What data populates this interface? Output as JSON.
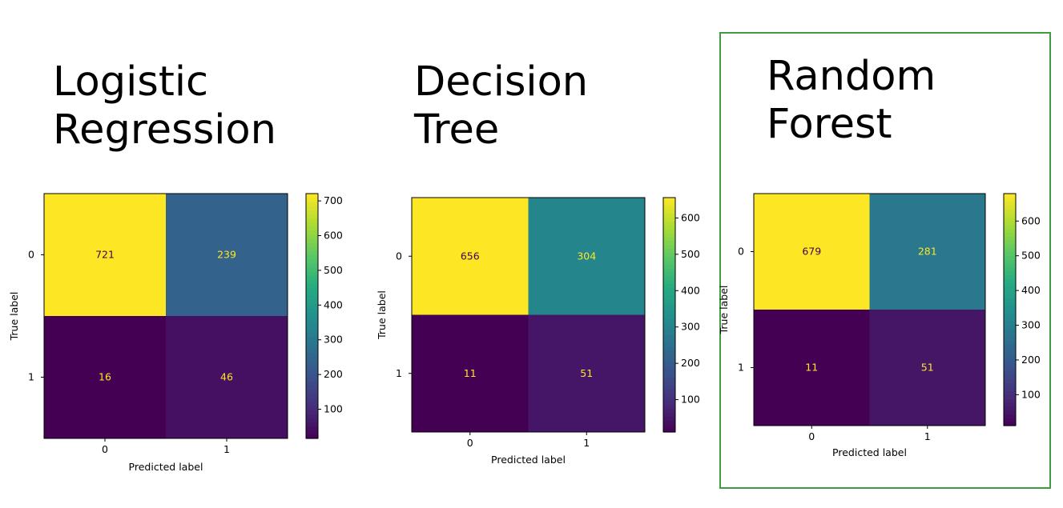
{
  "highlight_color": "#3f9b3f",
  "charts": [
    {
      "title_line1": "Logistic",
      "title_line2": "Regression"
    },
    {
      "title_line1": "Decision",
      "title_line2": "Tree"
    },
    {
      "title_line1": "Random",
      "title_line2": "Forest"
    }
  ],
  "chart_data": [
    {
      "type": "heatmap",
      "title": "Logistic Regression",
      "xlabel": "Predicted label",
      "ylabel": "True label",
      "x_categories": [
        "0",
        "1"
      ],
      "y_categories": [
        "0",
        "1"
      ],
      "values": [
        [
          721,
          239
        ],
        [
          16,
          46
        ]
      ],
      "colormap": "viridis",
      "colorbar_range": [
        16,
        721
      ],
      "colorbar_ticks": [
        100,
        200,
        300,
        400,
        500,
        600,
        700
      ]
    },
    {
      "type": "heatmap",
      "title": "Decision Tree",
      "xlabel": "Predicted label",
      "ylabel": "True label",
      "x_categories": [
        "0",
        "1"
      ],
      "y_categories": [
        "0",
        "1"
      ],
      "values": [
        [
          656,
          304
        ],
        [
          11,
          51
        ]
      ],
      "colormap": "viridis",
      "colorbar_range": [
        11,
        656
      ],
      "colorbar_ticks": [
        100,
        200,
        300,
        400,
        500,
        600
      ]
    },
    {
      "type": "heatmap",
      "title": "Random Forest",
      "xlabel": "Predicted label",
      "ylabel": "True label",
      "x_categories": [
        "0",
        "1"
      ],
      "y_categories": [
        "0",
        "1"
      ],
      "values": [
        [
          679,
          281
        ],
        [
          11,
          51
        ]
      ],
      "colormap": "viridis",
      "colorbar_range": [
        11,
        679
      ],
      "colorbar_ticks": [
        100,
        200,
        300,
        400,
        500,
        600
      ]
    }
  ]
}
